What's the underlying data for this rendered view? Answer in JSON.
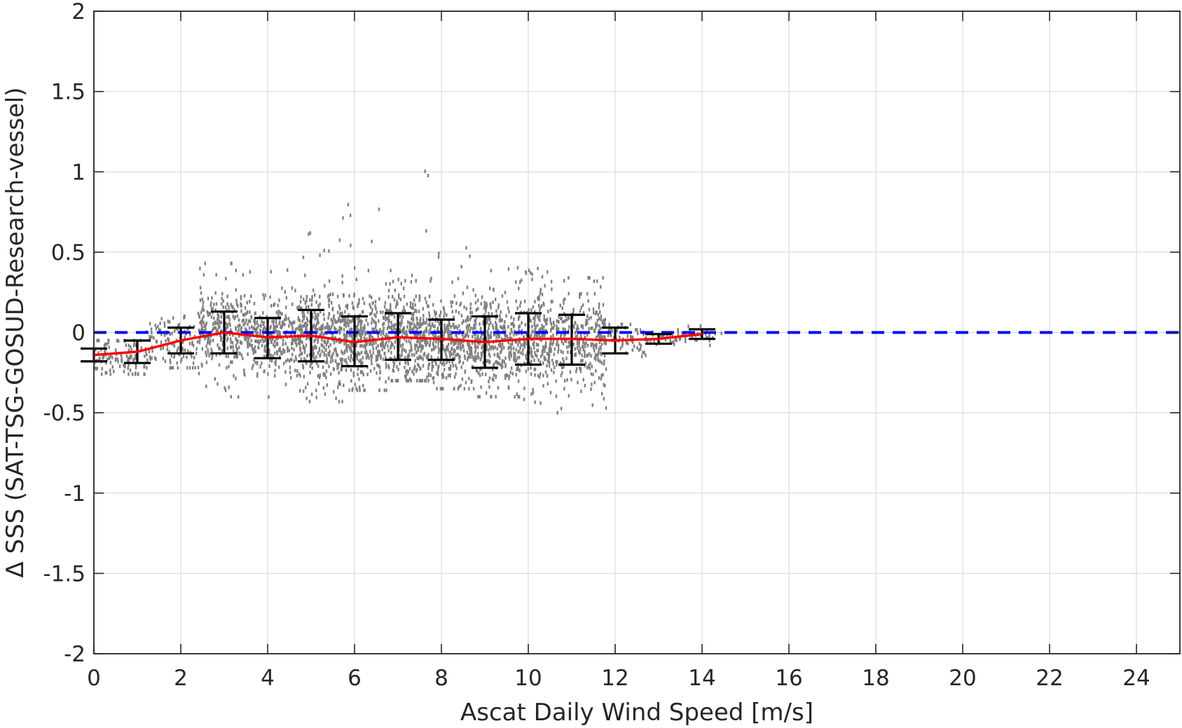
{
  "chart_data": {
    "type": "scatter",
    "title": "",
    "xlabel": "Ascat Daily Wind Speed [m/s]",
    "ylabel": "Δ SSS (SAT-TSG-GOSUD-Research-vessel)",
    "xlim": [
      0,
      25
    ],
    "ylim": [
      -2,
      2
    ],
    "xticks": [
      0,
      2,
      4,
      6,
      8,
      10,
      12,
      14,
      16,
      18,
      20,
      22,
      24
    ],
    "yticks": [
      -2,
      -1.5,
      -1,
      -0.5,
      0,
      0.5,
      1,
      1.5,
      2
    ],
    "xtick_labels": [
      "0",
      "2",
      "4",
      "6",
      "8",
      "10",
      "12",
      "14",
      "16",
      "18",
      "20",
      "22",
      "24"
    ],
    "ytick_labels": [
      "-2",
      "-1.5",
      "-1",
      "-0.5",
      "0",
      "0.5",
      "1",
      "1.5",
      "2"
    ],
    "grid": true,
    "colors": {
      "scatter": "#808080",
      "mean_line": "#ff0000",
      "errorbar": "#000000",
      "zero_line": "#0000ff",
      "grid": "#dcdcdc"
    },
    "scatter_clusters": [
      {
        "x": [
          0,
          1.2
        ],
        "y_center": -0.15,
        "y_spread": 0.07,
        "y_min": -0.26,
        "y_max": -0.05,
        "count": 120
      },
      {
        "x": [
          1.2,
          2.4
        ],
        "y_center": -0.08,
        "y_spread": 0.09,
        "y_min": -0.22,
        "y_max": 0.1,
        "count": 120
      },
      {
        "x": [
          2.4,
          3.6
        ],
        "y_center": 0.0,
        "y_spread": 0.12,
        "y_min": -0.46,
        "y_max": 0.43,
        "count": 300
      },
      {
        "x": [
          3.6,
          4.8
        ],
        "y_center": -0.03,
        "y_spread": 0.12,
        "y_min": -0.45,
        "y_max": 0.42,
        "count": 320
      },
      {
        "x": [
          4.8,
          5.8
        ],
        "y_center": -0.02,
        "y_spread": 0.15,
        "y_min": -0.43,
        "y_max": 0.75,
        "count": 360
      },
      {
        "x": [
          5.8,
          6.8
        ],
        "y_center": -0.05,
        "y_spread": 0.14,
        "y_min": -0.36,
        "y_max": 0.84,
        "count": 360
      },
      {
        "x": [
          6.8,
          7.8
        ],
        "y_center": -0.03,
        "y_spread": 0.14,
        "y_min": -0.3,
        "y_max": 1.01,
        "count": 360
      },
      {
        "x": [
          7.8,
          8.8
        ],
        "y_center": -0.05,
        "y_spread": 0.12,
        "y_min": -0.35,
        "y_max": 0.55,
        "count": 340
      },
      {
        "x": [
          8.8,
          9.8
        ],
        "y_center": -0.06,
        "y_spread": 0.14,
        "y_min": -0.4,
        "y_max": 0.5,
        "count": 320
      },
      {
        "x": [
          9.8,
          10.8
        ],
        "y_center": -0.05,
        "y_spread": 0.14,
        "y_min": -0.55,
        "y_max": 0.4,
        "count": 300
      },
      {
        "x": [
          10.8,
          11.8
        ],
        "y_center": -0.05,
        "y_spread": 0.13,
        "y_min": -0.5,
        "y_max": 0.34,
        "count": 260
      },
      {
        "x": [
          11.8,
          12.8
        ],
        "y_center": -0.05,
        "y_spread": 0.06,
        "y_min": -0.15,
        "y_max": 0.05,
        "count": 60
      },
      {
        "x": [
          12.8,
          13.6
        ],
        "y_center": -0.04,
        "y_spread": 0.03,
        "y_min": -0.1,
        "y_max": 0.02,
        "count": 30
      },
      {
        "x": [
          13.6,
          14.5
        ],
        "y_center": -0.02,
        "y_spread": 0.03,
        "y_min": -0.08,
        "y_max": 0.04,
        "count": 25
      }
    ],
    "mean_line": {
      "x": [
        0,
        1,
        2,
        3,
        4,
        5,
        6,
        7,
        8,
        9,
        10,
        11,
        12,
        13,
        14
      ],
      "y": [
        -0.14,
        -0.12,
        -0.05,
        0.0,
        -0.03,
        -0.02,
        -0.06,
        -0.03,
        -0.04,
        -0.06,
        -0.04,
        -0.04,
        -0.05,
        -0.04,
        -0.01
      ]
    },
    "errorbars": [
      {
        "x": 0,
        "low": -0.18,
        "high": -0.1
      },
      {
        "x": 1,
        "low": -0.19,
        "high": -0.05
      },
      {
        "x": 2,
        "low": -0.13,
        "high": 0.03
      },
      {
        "x": 3,
        "low": -0.13,
        "high": 0.13
      },
      {
        "x": 4,
        "low": -0.16,
        "high": 0.09
      },
      {
        "x": 5,
        "low": -0.18,
        "high": 0.14
      },
      {
        "x": 6,
        "low": -0.21,
        "high": 0.1
      },
      {
        "x": 7,
        "low": -0.17,
        "high": 0.12
      },
      {
        "x": 8,
        "low": -0.17,
        "high": 0.08
      },
      {
        "x": 9,
        "low": -0.22,
        "high": 0.1
      },
      {
        "x": 10,
        "low": -0.2,
        "high": 0.12
      },
      {
        "x": 11,
        "low": -0.2,
        "high": 0.11
      },
      {
        "x": 12,
        "low": -0.13,
        "high": 0.03
      },
      {
        "x": 13,
        "low": -0.07,
        "high": -0.01
      },
      {
        "x": 14,
        "low": -0.04,
        "high": 0.02
      }
    ],
    "reference_line": {
      "y": 0,
      "style": "dashed"
    }
  }
}
